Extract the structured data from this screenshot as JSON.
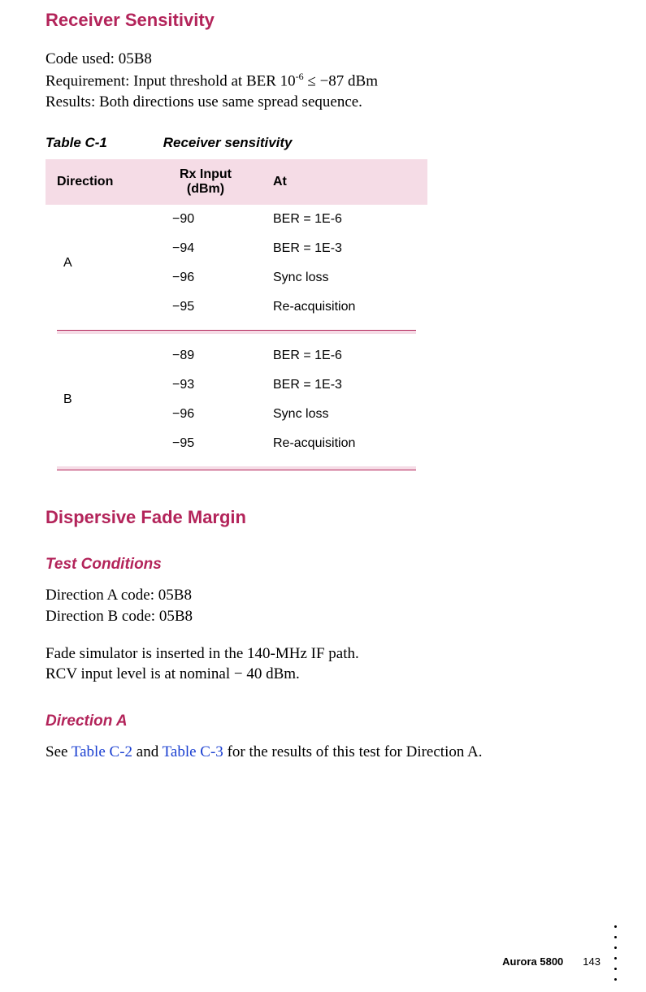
{
  "colors": {
    "heading": "#b3245a",
    "link": "#1a3fd1",
    "table_header_bg": "#f5dce6",
    "table_sep_line": "#b3245a",
    "text": "#000000",
    "background": "#ffffff"
  },
  "section1": {
    "title": "Receiver Sensitivity",
    "lines": {
      "code": "Code used: 05B8",
      "req_pre": "Requirement: Input threshold at BER 10",
      "req_sup": "-6",
      "req_post": " ≤ −87 dBm",
      "results": "Results: Both directions use same spread sequence."
    }
  },
  "table": {
    "caption_num": "Table C-1",
    "caption_title": "Receiver sensitivity",
    "columns": {
      "direction": "Direction",
      "rx_input_l1": "Rx Input",
      "rx_input_l2": "(dBm)",
      "at": "At"
    },
    "groups": [
      {
        "direction": "A",
        "rows": [
          {
            "rx": "−90",
            "at": "BER = 1E-6"
          },
          {
            "rx": "−94",
            "at": "BER = 1E-3"
          },
          {
            "rx": "−96",
            "at": "Sync loss"
          },
          {
            "rx": "−95",
            "at": "Re-acquisition"
          }
        ]
      },
      {
        "direction": "B",
        "rows": [
          {
            "rx": "−89",
            "at": "BER = 1E-6"
          },
          {
            "rx": "−93",
            "at": "BER = 1E-3"
          },
          {
            "rx": "−96",
            "at": "Sync loss"
          },
          {
            "rx": "−95",
            "at": "Re-acquisition"
          }
        ]
      }
    ]
  },
  "section2": {
    "title": "Dispersive Fade Margin",
    "sub1": {
      "title": "Test Conditions",
      "lines": {
        "a": "Direction A code: 05B8",
        "b": "Direction B code: 05B8",
        "c": "Fade simulator is inserted in the 140-MHz IF path.",
        "d": "RCV input level is at nominal − 40 dBm."
      }
    },
    "sub2": {
      "title": "Direction A",
      "text_pre": "See ",
      "link1": "Table C-2",
      "text_mid": " and ",
      "link2": "Table C-3",
      "text_post": " for the results of this test for Direction A."
    }
  },
  "footer": {
    "product": "Aurora 5800",
    "page": "143"
  }
}
